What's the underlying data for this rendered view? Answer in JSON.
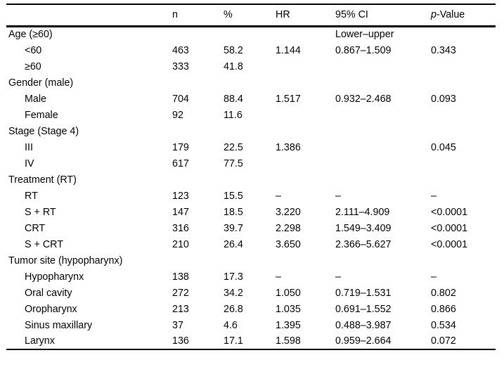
{
  "table": {
    "columns": [
      {
        "key": "label",
        "label": ""
      },
      {
        "key": "n",
        "label": "n"
      },
      {
        "key": "pct",
        "label": "%"
      },
      {
        "key": "hr",
        "label": "HR"
      },
      {
        "key": "ci",
        "label": "95% CI"
      },
      {
        "key": "p",
        "label_italic": "p",
        "label_rest": "-Value"
      }
    ],
    "rows": [
      {
        "type": "section",
        "label": "Age (≥60)",
        "n": "",
        "pct": "",
        "hr": "",
        "ci": "Lower–upper",
        "p": ""
      },
      {
        "type": "item",
        "label": "<60",
        "n": "463",
        "pct": "58.2",
        "hr": "1.144",
        "ci": "0.867–1.509",
        "p": "0.343"
      },
      {
        "type": "item",
        "label": "≥60",
        "n": "333",
        "pct": "41.8",
        "hr": "",
        "ci": "",
        "p": ""
      },
      {
        "type": "section",
        "label": "Gender (male)",
        "n": "",
        "pct": "",
        "hr": "",
        "ci": "",
        "p": ""
      },
      {
        "type": "item",
        "label": "Male",
        "n": "704",
        "pct": "88.4",
        "hr": "1.517",
        "ci": "0.932–2.468",
        "p": "0.093"
      },
      {
        "type": "item",
        "label": "Female",
        "n": "92",
        "pct": "11.6",
        "hr": "",
        "ci": "",
        "p": ""
      },
      {
        "type": "section",
        "label": "Stage (Stage 4)",
        "n": "",
        "pct": "",
        "hr": "",
        "ci": "",
        "p": ""
      },
      {
        "type": "item",
        "label": "III",
        "n": "179",
        "pct": "22.5",
        "hr": "1.386",
        "ci": "",
        "p": "0.045"
      },
      {
        "type": "item",
        "label": "IV",
        "n": "617",
        "pct": "77.5",
        "hr": "",
        "ci": "",
        "p": ""
      },
      {
        "type": "section",
        "label": "Treatment (RT)",
        "n": "",
        "pct": "",
        "hr": "",
        "ci": "",
        "p": ""
      },
      {
        "type": "item",
        "label": "RT",
        "n": "123",
        "pct": "15.5",
        "hr": "–",
        "ci": "–",
        "p": "–"
      },
      {
        "type": "item",
        "label": "S + RT",
        "n": "147",
        "pct": "18.5",
        "hr": "3.220",
        "ci": "2.111–4.909",
        "p": "<0.0001"
      },
      {
        "type": "item",
        "label": "CRT",
        "n": "316",
        "pct": "39.7",
        "hr": "2.298",
        "ci": "1.549–3.409",
        "p": "<0.0001"
      },
      {
        "type": "item",
        "label": "S + CRT",
        "n": "210",
        "pct": "26.4",
        "hr": "3.650",
        "ci": "2.366–5.627",
        "p": "<0.0001"
      },
      {
        "type": "section",
        "label": "Tumor site (hypopharynx)",
        "n": "",
        "pct": "",
        "hr": "",
        "ci": "",
        "p": ""
      },
      {
        "type": "item",
        "label": "Hypopharynx",
        "n": "138",
        "pct": "17.3",
        "hr": "–",
        "ci": "–",
        "p": "–"
      },
      {
        "type": "item",
        "label": "Oral cavity",
        "n": "272",
        "pct": "34.2",
        "hr": "1.050",
        "ci": "0.719–1.531",
        "p": "0.802"
      },
      {
        "type": "item",
        "label": "Oropharynx",
        "n": "213",
        "pct": "26.8",
        "hr": "1.035",
        "ci": "0.691–1.552",
        "p": "0.866"
      },
      {
        "type": "item",
        "label": "Sinus maxillary",
        "n": "37",
        "pct": "4.6",
        "hr": "1.395",
        "ci": "0.488–3.987",
        "p": "0.534"
      },
      {
        "type": "item",
        "label": "Larynx",
        "n": "136",
        "pct": "17.1",
        "hr": "1.598",
        "ci": "0.959–2.664",
        "p": "0.072"
      }
    ]
  }
}
